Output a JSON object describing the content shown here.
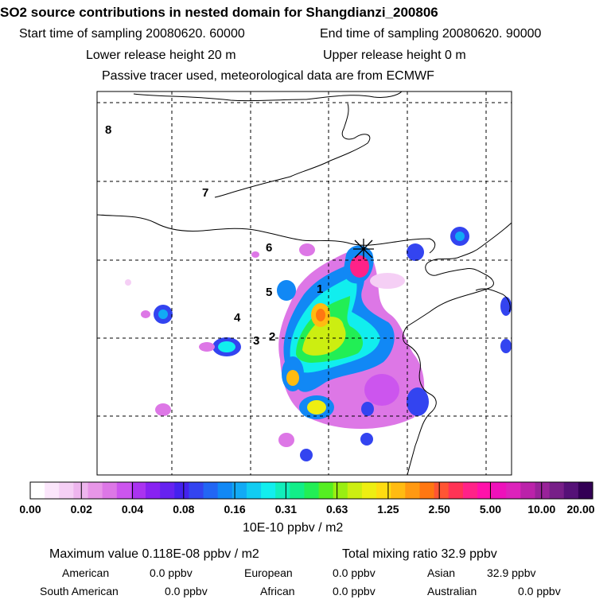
{
  "title": "SO2 source contributions in nested domain for Shangdianzi_200806",
  "header": {
    "start": "Start time of sampling 20080620. 60000",
    "end": "End time of sampling 20080620. 90000",
    "lower": "Lower release height   20 m",
    "upper": "Upper release height    0 m",
    "note": "Passive tracer used, meteorological data are from ECMWF"
  },
  "map": {
    "region_labels": [
      "1",
      "2",
      "3",
      "4",
      "5",
      "6",
      "7",
      "8"
    ],
    "site_marker_icon": "asterisk-cross-icon"
  },
  "colorbar": {
    "ticks": [
      "0.00",
      "0.02",
      "0.04",
      "0.08",
      "0.16",
      "0.31",
      "0.63",
      "1.25",
      "2.50",
      "5.00",
      "10.00",
      "20.00"
    ],
    "colors": [
      "#ffffff",
      "#fbe6fb",
      "#f5cff5",
      "#eeb5ee",
      "#e896e8",
      "#dd77e6",
      "#cc55ee",
      "#aa33f0",
      "#8822f2",
      "#6622f0",
      "#4422ee",
      "#3344f0",
      "#2266f4",
      "#1188f5",
      "#11aaf5",
      "#11ccf2",
      "#11eeee",
      "#11eebb",
      "#11ee88",
      "#22ee55",
      "#55ee22",
      "#99ee11",
      "#ccee11",
      "#eeee11",
      "#ffdd11",
      "#ffbb11",
      "#ff9911",
      "#ff7711",
      "#ff5533",
      "#ff3355",
      "#ff2288",
      "#ff11aa",
      "#ee11bb",
      "#dd22bb",
      "#bb22aa",
      "#992299",
      "#771f88",
      "#551177",
      "#330055"
    ],
    "unit": "10E-10 ppbv / m2"
  },
  "summary": {
    "maximum": "Maximum value  0.118E-08 ppbv / m2",
    "total": "Total mixing ratio       32.9 ppbv",
    "american": "American",
    "american_val": "0.0 ppbv",
    "european": "European",
    "european_val": "0.0 ppbv",
    "asian": "Asian",
    "asian_val": "32.9 ppbv",
    "south_american": "South American",
    "south_american_val": "0.0 ppbv",
    "african": "African",
    "african_val": "0.0 ppbv",
    "australian": "Australian",
    "australian_val": "0.0 ppbv"
  }
}
